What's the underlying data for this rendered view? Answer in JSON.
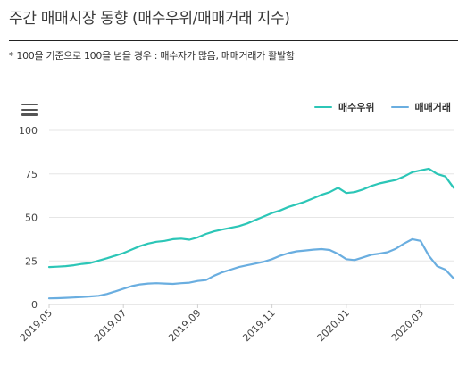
{
  "page": {
    "title": "주간 매매시장 동향 (매수우위/매매거래 지수)",
    "note": "* 100을 기준으로 100을 넘을 경우 : 매수자가 많음, 매매거래가 활발함"
  },
  "icons": {
    "menu": "hamburger-menu-icon"
  },
  "colors": {
    "series1": "#2cc6b7",
    "series2": "#6aaee0",
    "grid": "#e6e6e6",
    "axis": "#d0d0d0"
  },
  "chart_data": {
    "type": "line",
    "title": "",
    "xlabel": "",
    "ylabel": "",
    "ylim": [
      0,
      100
    ],
    "yticks": [
      0,
      25,
      50,
      75,
      100
    ],
    "xticks": [
      "2019.05",
      "2019.07",
      "2019.09",
      "2019.11",
      "2020.01",
      "2020.03"
    ],
    "xtick_weeks": [
      0,
      9,
      18,
      27,
      36,
      45
    ],
    "legend_position": "top-right",
    "grid": "horizontal",
    "x": [
      0,
      1,
      2,
      3,
      4,
      5,
      6,
      7,
      8,
      9,
      10,
      11,
      12,
      13,
      14,
      15,
      16,
      17,
      18,
      19,
      20,
      21,
      22,
      23,
      24,
      25,
      26,
      27,
      28,
      29,
      30,
      31,
      32,
      33,
      34,
      35,
      36,
      37,
      38,
      39,
      40,
      41,
      42,
      43,
      44,
      45,
      46,
      47,
      48,
      49
    ],
    "series": [
      {
        "name": "매수우위",
        "color": "#2cc6b7",
        "values": [
          21.5,
          21.7,
          22,
          22.5,
          23.3,
          23.8,
          25.2,
          26.5,
          28,
          29.5,
          31.5,
          33.5,
          35,
          36,
          36.5,
          37.5,
          37.8,
          37.2,
          38.5,
          40.5,
          42,
          43,
          44,
          45,
          46.5,
          48.5,
          50.5,
          52.5,
          54,
          56,
          57.5,
          59,
          61,
          63,
          64.5,
          67,
          64,
          64.5,
          66,
          68,
          69.5,
          70.5,
          71.5,
          73.5,
          76,
          77,
          78,
          75,
          73.5,
          67
        ]
      },
      {
        "name": "매매거래",
        "color": "#6aaee0",
        "values": [
          3.5,
          3.6,
          3.8,
          4,
          4.3,
          4.6,
          5,
          6,
          7.5,
          9,
          10.5,
          11.5,
          12,
          12.2,
          12,
          11.8,
          12.2,
          12.5,
          13.5,
          14,
          16.5,
          18.5,
          20,
          21.5,
          22.5,
          23.5,
          24.5,
          26,
          28,
          29.5,
          30.5,
          31,
          31.5,
          31.8,
          31.3,
          29,
          26,
          25.5,
          27,
          28.5,
          29.2,
          30,
          32,
          35,
          37.5,
          36.5,
          28,
          22,
          20,
          15
        ]
      }
    ]
  }
}
